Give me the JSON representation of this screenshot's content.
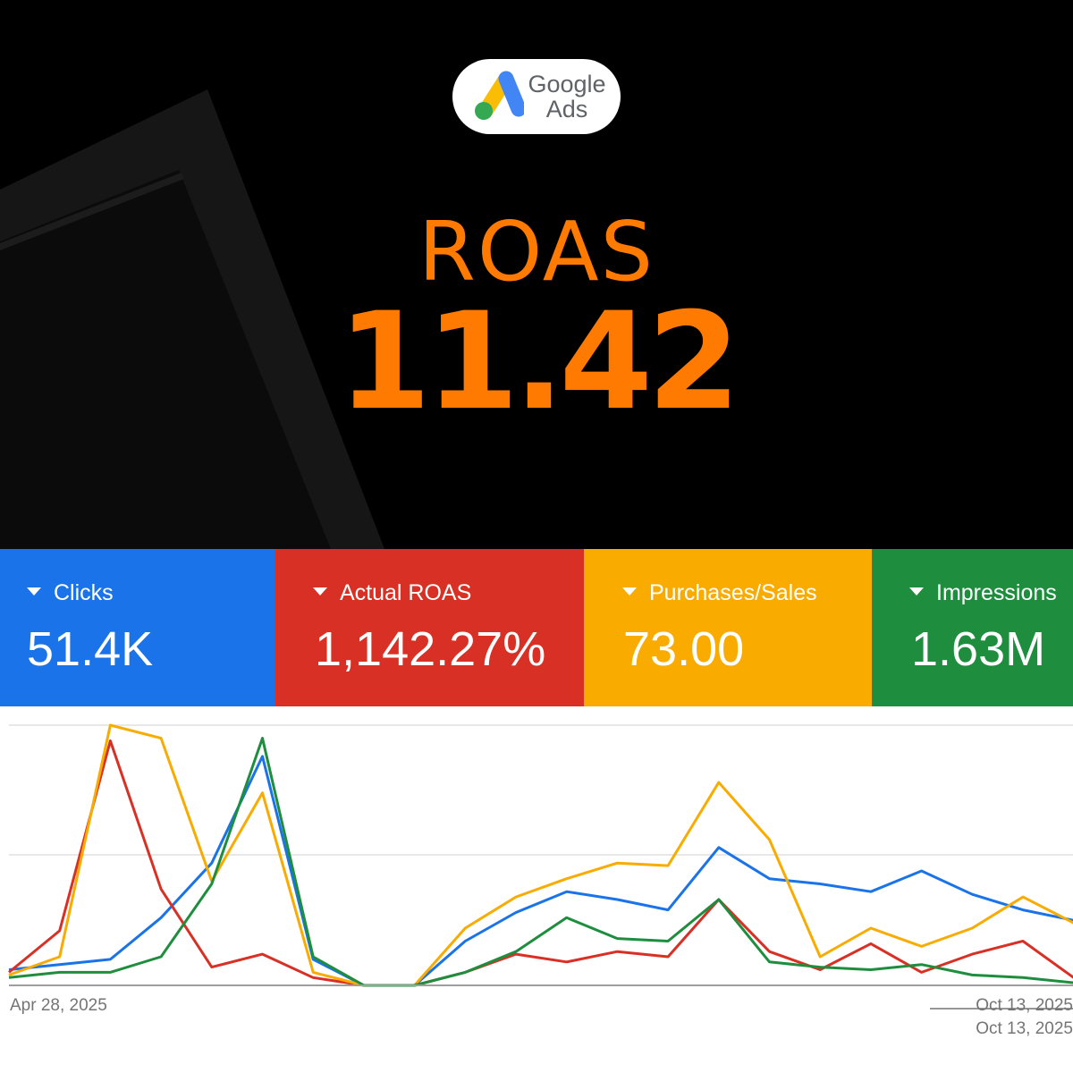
{
  "hero": {
    "logo": {
      "brand_line1": "Google",
      "brand_line2": "Ads"
    },
    "title": "ROAS",
    "value": "11.42"
  },
  "kpis": [
    {
      "label": "Clicks",
      "value": "51.4K",
      "color": "#1a73e8"
    },
    {
      "label": "Actual ROAS",
      "value": "1,142.27%",
      "color": "#d93025"
    },
    {
      "label": "Purchases/Sales",
      "value": "73.00",
      "color": "#f9ab00"
    },
    {
      "label": "Impressions",
      "value": "1.63M",
      "color": "#1e8e3e"
    }
  ],
  "chart_data": {
    "type": "line",
    "x_start_label": "Apr 28, 2025",
    "x_end_label": "Oct 13, 2025",
    "x_end_label_overlap": "Oct 13, 2025",
    "y_scale": "normalized 0-1 per series",
    "grid": true,
    "n_points": 22,
    "series": [
      {
        "color": "#1a73e8",
        "values": [
          0.06,
          0.08,
          0.1,
          0.26,
          0.47,
          0.88,
          0.1,
          0,
          0,
          0.17,
          0.28,
          0.36,
          0.33,
          0.29,
          0.53,
          0.41,
          0.39,
          0.36,
          0.44,
          0.35,
          0.29,
          0.25
        ]
      },
      {
        "color": "#d93025",
        "values": [
          0.05,
          0.21,
          0.94,
          0.37,
          0.07,
          0.12,
          0.03,
          0,
          0,
          0.05,
          0.12,
          0.09,
          0.13,
          0.11,
          0.33,
          0.13,
          0.06,
          0.16,
          0.05,
          0.12,
          0.17,
          0.03
        ]
      },
      {
        "color": "#f9ab00",
        "values": [
          0.04,
          0.11,
          1.0,
          0.95,
          0.4,
          0.74,
          0.05,
          0,
          0,
          0.22,
          0.34,
          0.41,
          0.47,
          0.46,
          0.78,
          0.56,
          0.11,
          0.22,
          0.15,
          0.22,
          0.34,
          0.24
        ]
      },
      {
        "color": "#1e8e3e",
        "values": [
          0.03,
          0.05,
          0.05,
          0.11,
          0.39,
          0.95,
          0.11,
          0,
          0,
          0.05,
          0.13,
          0.26,
          0.18,
          0.17,
          0.33,
          0.09,
          0.07,
          0.06,
          0.08,
          0.04,
          0.03,
          0.01
        ]
      }
    ]
  }
}
